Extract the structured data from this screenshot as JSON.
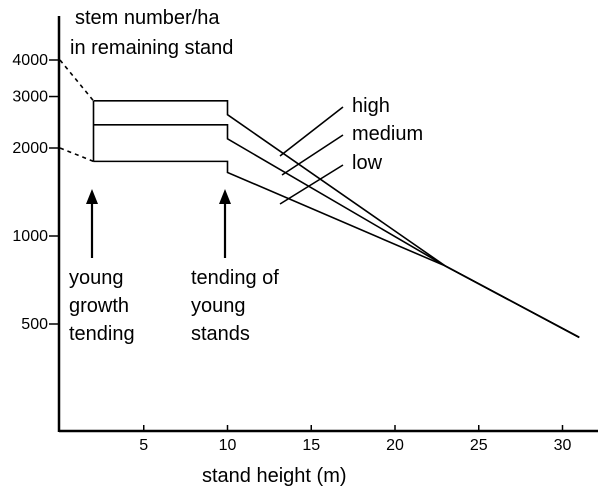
{
  "chart_data": {
    "type": "line",
    "ylabel": "stem number/ha in remaining stand",
    "xlabel": "stand height (m)",
    "x_scale": "linear",
    "y_scale": "log",
    "xlim": [
      0,
      32
    ],
    "ylim": [
      180,
      4000
    ],
    "grid": false,
    "x_ticks": [
      5,
      10,
      15,
      20,
      25,
      30
    ],
    "y_ticks": [
      500,
      1000,
      2000,
      3000,
      4000
    ],
    "series": [
      {
        "name": "high",
        "x": [
          2,
          10,
          10,
          23,
          31
        ],
        "y": [
          2900,
          2900,
          2600,
          790,
          450
        ]
      },
      {
        "name": "medium",
        "x": [
          2,
          10,
          10,
          23,
          31
        ],
        "y": [
          2400,
          2400,
          2150,
          790,
          450
        ]
      },
      {
        "name": "low",
        "x": [
          2,
          10,
          10,
          23,
          31
        ],
        "y": [
          1800,
          1800,
          1650,
          790,
          450
        ]
      }
    ],
    "connector": {
      "x": 2,
      "y_from": 1800,
      "y_to": 2900
    },
    "dashed_lines": [
      {
        "x": [
          0,
          2
        ],
        "y": [
          4000,
          2900
        ]
      },
      {
        "x": [
          0,
          2
        ],
        "y": [
          2000,
          1800
        ]
      }
    ],
    "annotations": [
      {
        "lines": [
          "young",
          "growth",
          "tending"
        ],
        "x": 2
      },
      {
        "lines": [
          "tending of",
          "young",
          "stands"
        ],
        "x": 10
      }
    ]
  }
}
